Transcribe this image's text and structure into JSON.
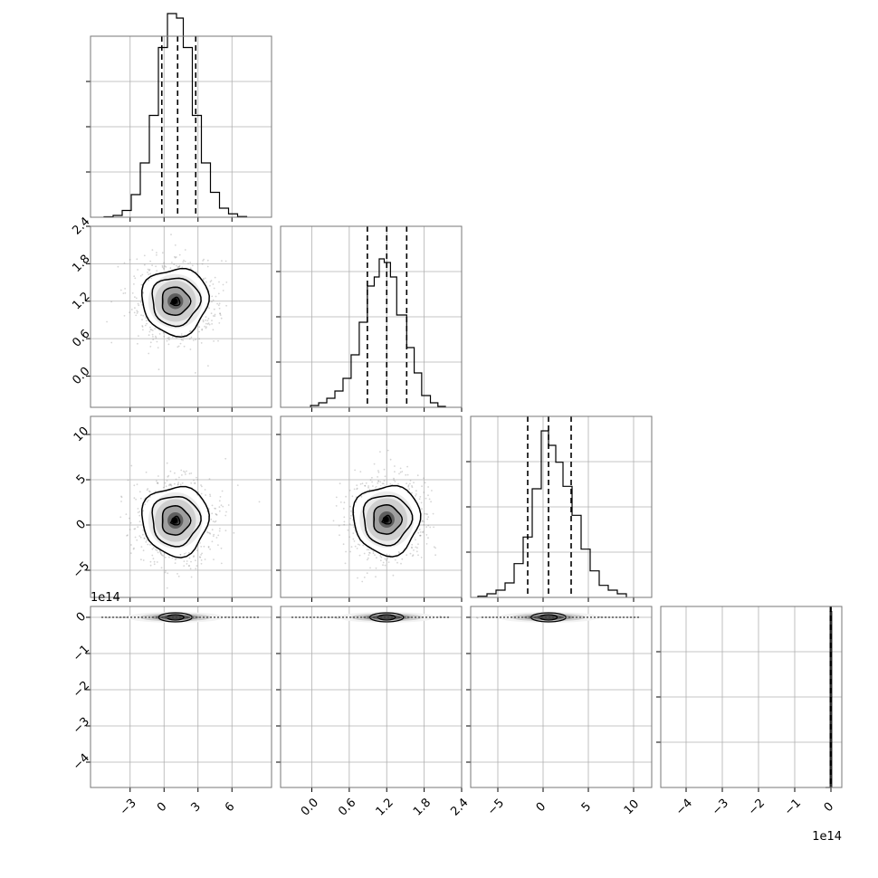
{
  "chart_data": {
    "type": "corner",
    "title": "",
    "grid": true,
    "variables": [
      {
        "range": [
          -6.5,
          9.5
        ],
        "ticks": [
          -3,
          0,
          3,
          6
        ],
        "tick_labels": [
          "−3",
          "0",
          "3",
          "6"
        ],
        "quantiles": [
          -0.2,
          1.2,
          2.8
        ],
        "hist_edges": [
          -5.3,
          -4.5,
          -3.7,
          -2.9,
          -2.1,
          -1.3,
          -0.5,
          0.3,
          1.1,
          1.7,
          2.5,
          3.3,
          4.1,
          4.9,
          5.7,
          6.5,
          7.3
        ],
        "hist_counts": [
          0.2,
          0.8,
          3,
          10,
          24,
          45,
          75,
          90,
          88,
          75,
          45,
          24,
          11,
          4,
          1.5,
          0.3
        ]
      },
      {
        "range": [
          -0.5,
          2.4
        ],
        "ticks": [
          0.0,
          0.6,
          1.2,
          1.8,
          2.4
        ],
        "tick_labels": [
          "0.0",
          "0.6",
          "1.2",
          "1.8",
          "2.4"
        ],
        "quantiles": [
          0.89,
          1.2,
          1.52
        ],
        "hist_edges": [
          -0.02,
          0.11,
          0.24,
          0.37,
          0.5,
          0.63,
          0.76,
          0.89,
          1.0,
          1.08,
          1.16,
          1.26,
          1.36,
          1.52,
          1.64,
          1.76,
          1.9,
          2.02,
          2.14
        ],
        "hist_counts": [
          1,
          2.5,
          5,
          9,
          16,
          29,
          47,
          67,
          72,
          82,
          80,
          72,
          51,
          33,
          19,
          6.5,
          2.5,
          0.5
        ]
      },
      {
        "range": [
          -8,
          12
        ],
        "ticks": [
          -5,
          0,
          5,
          10
        ],
        "tick_labels": [
          "−5",
          "0",
          "5",
          "10"
        ],
        "quantiles": [
          -1.7,
          0.6,
          3.1
        ],
        "hist_edges": [
          -7.2,
          -6.2,
          -5.2,
          -4.2,
          -3.2,
          -2.2,
          -1.2,
          -0.2,
          0.6,
          1.4,
          2.2,
          3.2,
          4.2,
          5.2,
          6.2,
          7.2,
          8.2,
          9.2
        ],
        "hist_counts": [
          0.5,
          1.5,
          3,
          6,
          14,
          25,
          45,
          69,
          63,
          56,
          46,
          34,
          20,
          11,
          5,
          3,
          1.5
        ]
      },
      {
        "range": [
          -4.7,
          0.3
        ],
        "ticks": [
          -4,
          -3,
          -2,
          -1,
          0
        ],
        "tick_labels": [
          "−4",
          "−3",
          "−2",
          "−1",
          "0"
        ],
        "offset_label": "1e14",
        "quantiles": [
          -0.015,
          0.0,
          0.0
        ],
        "hist_edges": [
          -0.15,
          -0.02,
          0.02
        ],
        "hist_counts": [
          0,
          175
        ]
      }
    ],
    "row_labels": [
      {
        "ticks": [
          0.0,
          0.6,
          1.2,
          1.8,
          2.4
        ],
        "tick_labels": [
          "0.0",
          "0.6",
          "1.2",
          "1.8",
          "2.4"
        ]
      },
      {
        "ticks": [
          -5,
          0,
          5,
          10
        ],
        "tick_labels": [
          "−5",
          "0",
          "5",
          "10"
        ]
      },
      {
        "ticks": [
          -4,
          -3,
          -2,
          -1,
          0
        ],
        "tick_labels": [
          "−4",
          "−3",
          "−2",
          "−1",
          "0"
        ],
        "offset_label": "1e14"
      }
    ],
    "diag_ymax": [
      80,
      100,
      75,
      180
    ],
    "pairs": [
      {
        "row": 1,
        "col": 0,
        "center": [
          1.0,
          1.2
        ],
        "spread": [
          3.3,
          0.6
        ]
      },
      {
        "row": 2,
        "col": 0,
        "center": [
          1.0,
          0.5
        ],
        "spread": [
          3.3,
          4.3
        ]
      },
      {
        "row": 2,
        "col": 1,
        "center": [
          1.2,
          0.6
        ],
        "spread": [
          0.6,
          4.3
        ]
      },
      {
        "row": 3,
        "col": 0,
        "center": [
          1.0,
          0.0
        ],
        "spread": [
          3.3,
          0.05
        ]
      },
      {
        "row": 3,
        "col": 1,
        "center": [
          1.2,
          0.0
        ],
        "spread": [
          0.6,
          0.05
        ]
      },
      {
        "row": 3,
        "col": 2,
        "center": [
          0.6,
          0.0
        ],
        "spread": [
          4.3,
          0.05
        ]
      }
    ]
  }
}
